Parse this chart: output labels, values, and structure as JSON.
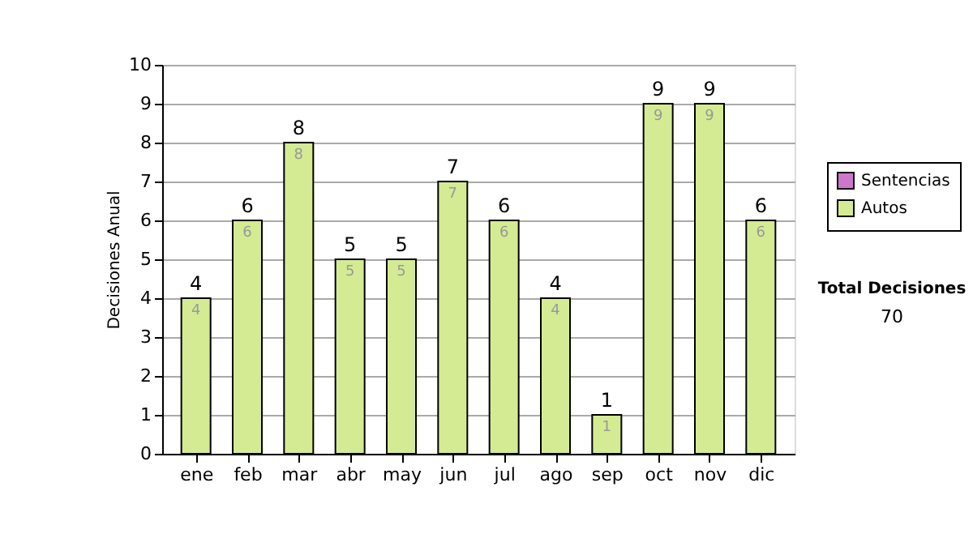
{
  "chart_data": {
    "type": "bar",
    "ylabel": "Decisiones Anual",
    "categories": [
      "ene",
      "feb",
      "mar",
      "abr",
      "may",
      "jun",
      "jul",
      "ago",
      "sep",
      "oct",
      "nov",
      "dic"
    ],
    "series": [
      {
        "name": "Sentencias",
        "color": "#cc77cc",
        "values": [
          null,
          null,
          null,
          null,
          null,
          null,
          null,
          null,
          null,
          null,
          null,
          null
        ]
      },
      {
        "name": "Autos",
        "color": "#d4eb94",
        "values": [
          4,
          6,
          8,
          5,
          5,
          7,
          6,
          4,
          1,
          9,
          9,
          6
        ]
      }
    ],
    "stacked": true,
    "data_labels": true,
    "totals": [
      "4",
      "6",
      "8",
      "5",
      "5",
      "7",
      "6",
      "4",
      "1",
      "9",
      "9",
      "6"
    ],
    "ylim": [
      0,
      10
    ],
    "yticks": [
      0,
      1,
      2,
      3,
      4,
      5,
      6,
      7,
      8,
      9,
      10
    ],
    "grid": "y",
    "legend": "right",
    "annotations": [
      "Total Decisiones",
      "70"
    ]
  }
}
